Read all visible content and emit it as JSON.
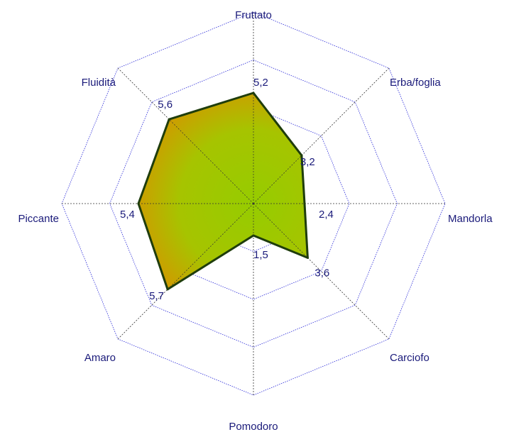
{
  "chart_data": {
    "type": "radar",
    "axes": [
      "Fruttato",
      "Erba/foglia",
      "Mandorla",
      "Carciofo",
      "Pomodoro",
      "Amaro",
      "Piccante",
      "Fluidità"
    ],
    "values": [
      5.2,
      3.2,
      2.4,
      3.6,
      1.5,
      5.7,
      5.4,
      5.6
    ],
    "value_labels": [
      "5,2",
      "3,2",
      "2,4",
      "3,6",
      "1,5",
      "5,7",
      "5,4",
      "5,6"
    ],
    "rlim": [
      0,
      9
    ],
    "rings": 4,
    "colors": {
      "grid": "#2a2ad8",
      "spoke": "#333333",
      "outline": "#1f3d0c",
      "fill_green": "#96cc00",
      "fill_orange": "#ff5a00",
      "label": "#1a1a7a"
    }
  }
}
